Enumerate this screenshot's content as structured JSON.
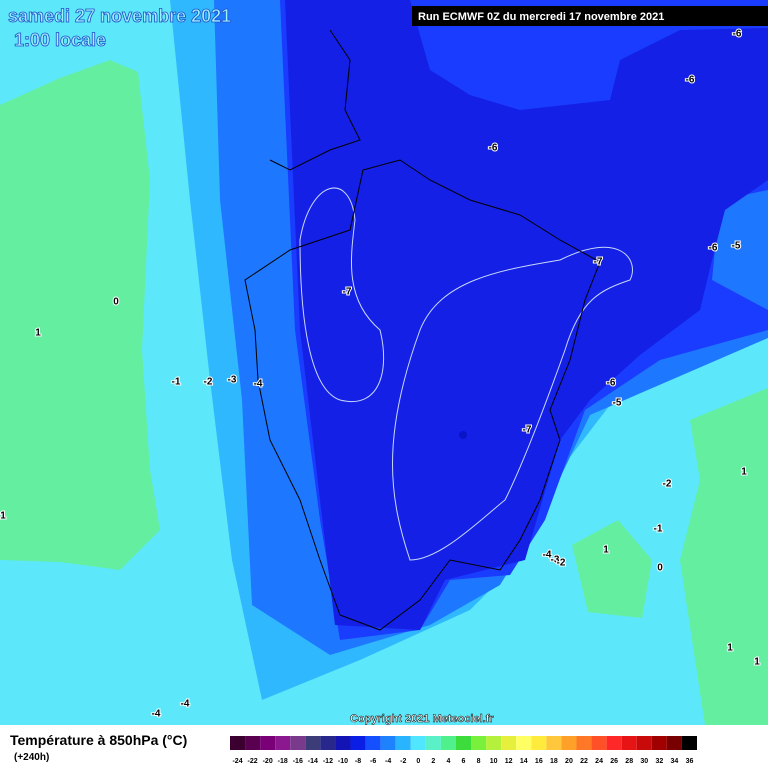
{
  "header": {
    "date": "samedi 27 novembre 2021",
    "time": "1:00 locale",
    "run": "Run ECMWF 0Z du mercredi 17 novembre 2021"
  },
  "copyright": "Copyright 2021 Meteociel.fr",
  "legend": {
    "title": "Température à 850hPa (°C)",
    "lead": "(+240h)",
    "labels": [
      -24,
      -22,
      -20,
      -18,
      -16,
      -14,
      -12,
      -10,
      -8,
      -6,
      -4,
      -2,
      0,
      2,
      4,
      6,
      8,
      10,
      12,
      14,
      16,
      18,
      20,
      22,
      24,
      26,
      28,
      30,
      32,
      34,
      36
    ],
    "colors": [
      "#3c0030",
      "#5a0050",
      "#7a0078",
      "#8c1890",
      "#7a3a8c",
      "#3c3c78",
      "#28288c",
      "#1414b4",
      "#0a1ee6",
      "#1450ff",
      "#1e82ff",
      "#28b4ff",
      "#50e6ff",
      "#5af0c8",
      "#50f08c",
      "#3cdc3c",
      "#78f03c",
      "#b4f03c",
      "#e6f03c",
      "#ffff64",
      "#ffeb3c",
      "#ffc83c",
      "#ffa028",
      "#ff7828",
      "#ff5028",
      "#ff2828",
      "#e61414",
      "#c80a0a",
      "#a00000",
      "#780000",
      "#000000"
    ]
  },
  "contour_labels": [
    -6,
    -6,
    -6,
    -6,
    -5,
    -7,
    -7,
    -7,
    0,
    1,
    -1,
    -2,
    -3,
    -4,
    1,
    -6,
    -5,
    -2,
    -1,
    1,
    0,
    1,
    1,
    1,
    -4,
    -4,
    -4,
    -3,
    -2
  ]
}
